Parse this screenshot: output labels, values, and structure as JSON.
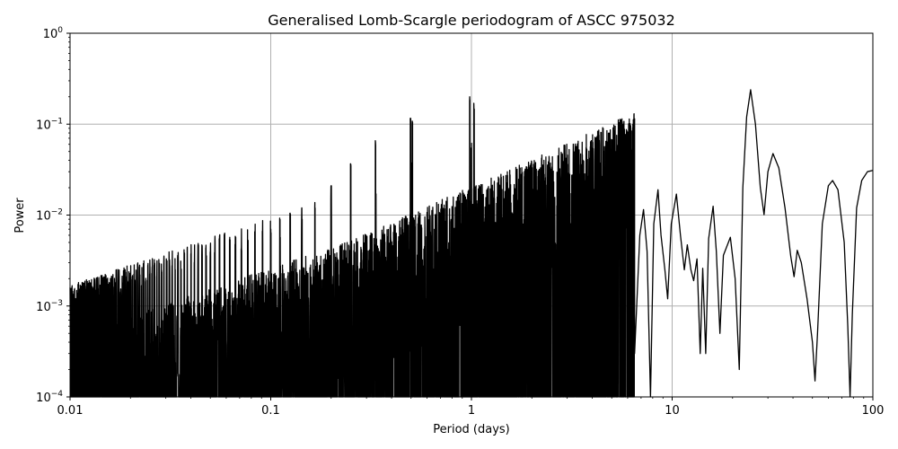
{
  "chart_data": {
    "type": "line",
    "title": "Generalised Lomb-Scargle periodogram of ASCC 975032",
    "xlabel": "Period (days)",
    "ylabel": "Power",
    "xscale": "log",
    "yscale": "log",
    "xlim": [
      0.01,
      100
    ],
    "ylim": [
      0.0001,
      1
    ],
    "grid": true,
    "legend": null,
    "xticks": [
      {
        "value": 0.01,
        "label": "0.01"
      },
      {
        "value": 0.1,
        "label": "0.1"
      },
      {
        "value": 1,
        "label": "1"
      },
      {
        "value": 10,
        "label": "10"
      },
      {
        "value": 100,
        "label": "100"
      }
    ],
    "yticks": [
      {
        "value": 1,
        "base": "10",
        "exp": "0"
      },
      {
        "value": 0.1,
        "base": "10",
        "exp": "−1"
      },
      {
        "value": 0.01,
        "base": "10",
        "exp": "−2"
      },
      {
        "value": 0.001,
        "base": "10",
        "exp": "−3"
      },
      {
        "value": 0.0001,
        "base": "10",
        "exp": "−4"
      }
    ],
    "line_color": "#000000",
    "grid_color": "#b0b0b0",
    "notable_peaks": [
      {
        "period": 24.6,
        "power": 0.239
      },
      {
        "period": 0.98,
        "power": 0.204
      },
      {
        "period": 1.03,
        "power": 0.17
      },
      {
        "period": 0.497,
        "power": 0.129
      },
      {
        "period": 0.508,
        "power": 0.11
      },
      {
        "period": 31.8,
        "power": 0.0475
      },
      {
        "period": 0.333,
        "power": 0.066
      },
      {
        "period": 100,
        "power": 0.031
      },
      {
        "period": 63,
        "power": 0.024
      },
      {
        "period": 8.5,
        "power": 0.019
      },
      {
        "period": 10.5,
        "power": 0.017
      },
      {
        "period": 16.0,
        "power": 0.0125
      },
      {
        "period": 7.2,
        "power": 0.0115
      },
      {
        "period": 0.25,
        "power": 0.038
      },
      {
        "period": 0.2,
        "power": 0.022
      },
      {
        "period": 0.166,
        "power": 0.014
      },
      {
        "period": 0.143,
        "power": 0.0095
      },
      {
        "period": 19.5,
        "power": 0.0057
      },
      {
        "period": 42,
        "power": 0.0041
      }
    ],
    "smooth_tail": [
      [
        6.5,
        0.0003
      ],
      [
        6.9,
        0.006
      ],
      [
        7.2,
        0.0115
      ],
      [
        7.5,
        0.004
      ],
      [
        7.8,
        0.0001
      ],
      [
        8.1,
        0.008
      ],
      [
        8.5,
        0.019
      ],
      [
        8.8,
        0.006
      ],
      [
        9.2,
        0.0025
      ],
      [
        9.5,
        0.0012
      ],
      [
        9.9,
        0.008
      ],
      [
        10.5,
        0.017
      ],
      [
        11.0,
        0.006
      ],
      [
        11.5,
        0.0025
      ],
      [
        11.9,
        0.0047
      ],
      [
        12.4,
        0.0025
      ],
      [
        12.8,
        0.0019
      ],
      [
        13.3,
        0.0033
      ],
      [
        13.8,
        0.0003
      ],
      [
        14.2,
        0.0026
      ],
      [
        14.7,
        0.0003
      ],
      [
        15.2,
        0.0055
      ],
      [
        16.0,
        0.0125
      ],
      [
        16.6,
        0.004
      ],
      [
        17.3,
        0.0005
      ],
      [
        18.0,
        0.0036
      ],
      [
        19.5,
        0.0057
      ],
      [
        20.6,
        0.002
      ],
      [
        21.6,
        0.0002
      ],
      [
        22.5,
        0.02
      ],
      [
        23.5,
        0.12
      ],
      [
        24.6,
        0.239
      ],
      [
        26.0,
        0.1
      ],
      [
        27.5,
        0.02
      ],
      [
        28.7,
        0.0101
      ],
      [
        30.0,
        0.03
      ],
      [
        31.8,
        0.0475
      ],
      [
        34.0,
        0.033
      ],
      [
        36.5,
        0.012
      ],
      [
        39.0,
        0.0035
      ],
      [
        40.5,
        0.0021
      ],
      [
        42,
        0.0041
      ],
      [
        44,
        0.003
      ],
      [
        47,
        0.0012
      ],
      [
        50,
        0.0004
      ],
      [
        51.5,
        0.00015
      ],
      [
        53,
        0.0005
      ],
      [
        56,
        0.008
      ],
      [
        60,
        0.021
      ],
      [
        63,
        0.024
      ],
      [
        67,
        0.019
      ],
      [
        72,
        0.005
      ],
      [
        75,
        0.0006
      ],
      [
        77,
        0.0001
      ],
      [
        79,
        0.0008
      ],
      [
        83,
        0.012
      ],
      [
        88,
        0.024
      ],
      [
        94,
        0.03
      ],
      [
        100,
        0.031
      ]
    ]
  }
}
